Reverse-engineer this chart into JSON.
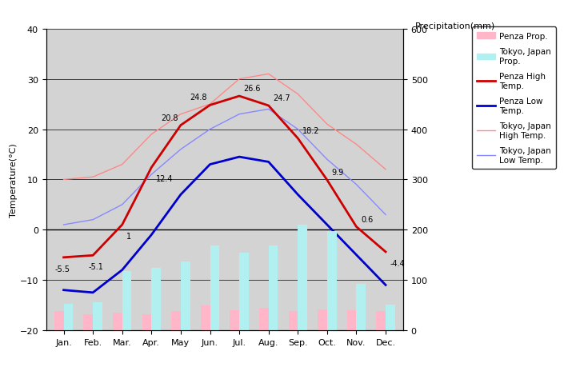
{
  "months": [
    "Jan.",
    "Feb.",
    "Mar.",
    "Apr.",
    "May",
    "Jun.",
    "Jul.",
    "Aug.",
    "Sep.",
    "Oct.",
    "Nov.",
    "Dec."
  ],
  "penza_high": [
    -5.5,
    -5.1,
    1.0,
    12.4,
    20.8,
    24.8,
    26.6,
    24.7,
    18.2,
    9.9,
    0.6,
    -4.4
  ],
  "penza_low": [
    -12,
    -12.5,
    -8,
    -1,
    7,
    13,
    14.5,
    13.5,
    7,
    1,
    -5,
    -11
  ],
  "tokyo_high": [
    10,
    10.5,
    13,
    19,
    23,
    25,
    30,
    31,
    27,
    21,
    17,
    12
  ],
  "tokyo_low": [
    1,
    2,
    5,
    11,
    16,
    20,
    23,
    24,
    20,
    14,
    9,
    3
  ],
  "penza_prcp": [
    38,
    32,
    35,
    32,
    38,
    50,
    40,
    45,
    38,
    42,
    40,
    38
  ],
  "tokyo_prcp": [
    52,
    56,
    117,
    124,
    137,
    168,
    154,
    168,
    210,
    197,
    93,
    51
  ],
  "temp_min": -20,
  "temp_max": 40,
  "prcp_min": 0,
  "prcp_max": 600,
  "bg_color": "#d3d3d3",
  "penza_high_color": "#cc0000",
  "penza_low_color": "#0000cc",
  "tokyo_high_color": "#ff8888",
  "tokyo_low_color": "#8888ff",
  "penza_prcp_color": "#ffb6c8",
  "tokyo_prcp_color": "#b0f0f0",
  "ylabel_left": "Temperature(°C)",
  "ylabel_right": "Precipitation(mm)",
  "annotate_values_high": [
    -5.5,
    -5.1,
    1,
    12.4,
    20.8,
    24.8,
    26.6,
    24.7,
    18.2,
    9.9,
    0.6,
    -4.4
  ],
  "legend_labels": [
    "Penza Prop.",
    "Tokyo, Japan\nProp.",
    "Penza High\nTemp.",
    "Penza Low\nTemp.",
    "Tokyo, Japan\nHigh Temp.",
    "Tokyo, Japan\nLow Temp."
  ]
}
